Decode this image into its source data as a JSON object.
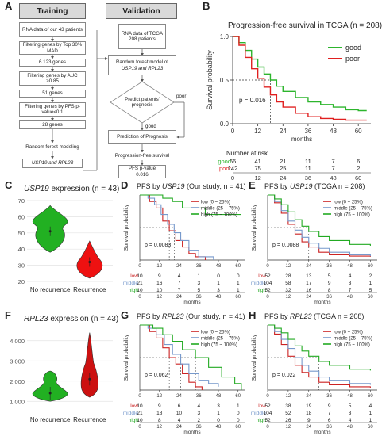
{
  "panels": {
    "A": "A",
    "B": "B",
    "C": "C",
    "D": "D",
    "E": "E",
    "F": "F",
    "G": "G",
    "H": "H"
  },
  "flow": {
    "training_header": "Training",
    "validation_header": "Validation",
    "t1": "RNA data of our 43 patients",
    "t2": "Filtering genes by Top 30% MAD",
    "t3": "6 123 genes",
    "t4": "Filtering genes by AUC >0.85",
    "t5": "51 genes",
    "t6": "Filtering genes by PFS p-value<0.1",
    "t7": "28 genes",
    "t8": "Random forest modeling",
    "t9": "USP19 and RPL23",
    "v1": "RNA data of TCGA 208 patients",
    "v2a": "Random forest model of",
    "v2b": "USP19 and RPL23",
    "v3": "Predict patients' prognosis",
    "v_poor": "poor",
    "v_good": "good",
    "v4": "Prediction of Prognosis",
    "v5": "Progression-free survival",
    "v6a": "PFS p-value",
    "v6b": "0.016"
  },
  "panelB": {
    "title": "Progression-free survival in TCGA (n = 208)",
    "ylabel": "Survival probability",
    "xlabel": "months",
    "pvalue": "p = 0.016",
    "risk_title": "Number at risk",
    "legend": [
      {
        "name": "good",
        "color": "#2db52d"
      },
      {
        "name": "poor",
        "color": "#e02020"
      }
    ],
    "chart_data": {
      "type": "line",
      "title": "Progression-free survival in TCGA (n = 208)",
      "xlabel": "months",
      "ylabel": "Survival probability",
      "xlim": [
        0,
        66
      ],
      "ylim": [
        0,
        1.0
      ],
      "x_ticks": [
        0,
        12,
        24,
        36,
        48,
        60
      ],
      "y_ticks": [
        0.0,
        0.5,
        1.0
      ],
      "series": [
        {
          "name": "good",
          "color": "#2db52d",
          "x": [
            0,
            3,
            6,
            9,
            12,
            15,
            18,
            21,
            24,
            30,
            36,
            42,
            48,
            54,
            60,
            64
          ],
          "y": [
            1.0,
            0.93,
            0.84,
            0.74,
            0.65,
            0.57,
            0.5,
            0.43,
            0.37,
            0.3,
            0.25,
            0.22,
            0.19,
            0.16,
            0.15,
            0.15
          ]
        },
        {
          "name": "poor",
          "color": "#e02020",
          "x": [
            0,
            3,
            6,
            9,
            12,
            15,
            18,
            21,
            24,
            30,
            36,
            42,
            48,
            54,
            60,
            64
          ],
          "y": [
            1.0,
            0.9,
            0.76,
            0.63,
            0.52,
            0.42,
            0.33,
            0.25,
            0.19,
            0.12,
            0.08,
            0.06,
            0.05,
            0.04,
            0.04,
            0.04
          ]
        }
      ],
      "risk_table": {
        "x": [
          0,
          12,
          24,
          36,
          48,
          60
        ],
        "rows": [
          {
            "name": "good",
            "values": [
              66,
              41,
              21,
              11,
              7,
              6
            ]
          },
          {
            "name": "poor",
            "values": [
              142,
              75,
              25,
              11,
              7,
              2
            ]
          }
        ]
      }
    }
  },
  "panelC": {
    "title_gene": "USP19",
    "title_rest": " expression (n = 43)",
    "chart_data": {
      "type": "violin",
      "categories": [
        "No recurrence",
        "Recurrence"
      ],
      "ylim": [
        20,
        70
      ],
      "y_ticks": [
        20,
        30,
        40,
        50,
        60,
        70
      ],
      "medians": [
        51,
        32
      ],
      "colors": [
        "#22b022",
        "#ee1111"
      ]
    }
  },
  "panelF": {
    "title_gene": "RPL23",
    "title_rest": " expression (n = 43)",
    "chart_data": {
      "type": "violin",
      "categories": [
        "No recurrence",
        "Recurrence"
      ],
      "ylim": [
        500,
        4500
      ],
      "y_ticks": [
        1000,
        2000,
        3000,
        4000
      ],
      "y_tick_labels": [
        "1 000",
        "2 000",
        "3 000",
        "4 000"
      ],
      "medians": [
        1400,
        2100
      ],
      "colors": [
        "#22b022",
        "#cc1111"
      ]
    }
  },
  "km_small": {
    "ylabel": "Survival probability",
    "xlabel": "months",
    "legend": [
      {
        "name": "low (0 ~ 25%)",
        "color": "#cc2222"
      },
      {
        "name": "middle (25 ~ 75%)",
        "color": "#7799cc"
      },
      {
        "name": "high (75 ~ 100%)",
        "color": "#22aa22"
      }
    ],
    "D": {
      "title_pre": "PFS by ",
      "title_gene": "USP19",
      "title_post": " (Our study, n = 41)",
      "pvalue": "p = 0.0083",
      "chart_data": {
        "type": "line",
        "xlim": [
          0,
          64
        ],
        "x_ticks": [
          0,
          12,
          24,
          36,
          48,
          60
        ],
        "series": [
          {
            "name": "low (0 ~ 25%)",
            "color": "#cc2222",
            "x": [
              0,
              6,
              10,
              14,
              18,
              22,
              26,
              30,
              34,
              40
            ],
            "y": [
              1.0,
              0.9,
              0.8,
              0.6,
              0.45,
              0.3,
              0.2,
              0.1,
              0.05,
              0.0
            ]
          },
          {
            "name": "middle (25 ~ 75%)",
            "color": "#7799cc",
            "x": [
              0,
              5,
              9,
              13,
              17,
              21,
              25,
              30,
              36,
              45
            ],
            "y": [
              1.0,
              0.95,
              0.85,
              0.7,
              0.55,
              0.42,
              0.3,
              0.15,
              0.05,
              0.0
            ]
          },
          {
            "name": "high (75 ~ 100%)",
            "color": "#22aa22",
            "x": [
              0,
              8,
              14,
              20,
              26,
              32,
              40,
              48,
              56,
              62
            ],
            "y": [
              1.0,
              1.0,
              0.95,
              0.9,
              0.8,
              0.8,
              0.7,
              0.7,
              0.7,
              0.7
            ]
          }
        ],
        "risk_table": {
          "x": [
            0,
            12,
            24,
            36,
            48,
            60
          ],
          "rows": [
            {
              "name": "low",
              "values": [
                10,
                9,
                4,
                1,
                0,
                0
              ]
            },
            {
              "name": "middle",
              "values": [
                21,
                16,
                7,
                3,
                1,
                1
              ]
            },
            {
              "name": "high",
              "values": [
                10,
                10,
                7,
                5,
                3,
                1
              ]
            }
          ]
        }
      }
    },
    "E": {
      "title_pre": "PFS by ",
      "title_gene": "USP19",
      "title_post": " (TCGA n = 208)",
      "pvalue": "p = 0.0088",
      "chart_data": {
        "type": "line",
        "xlim": [
          0,
          64
        ],
        "x_ticks": [
          0,
          12,
          24,
          36,
          48,
          60
        ],
        "series": [
          {
            "name": "low (0 ~ 25%)",
            "color": "#cc2222",
            "x": [
              0,
              4,
              8,
              12,
              16,
              20,
              24,
              30,
              36,
              48,
              60
            ],
            "y": [
              1.0,
              0.88,
              0.72,
              0.55,
              0.4,
              0.28,
              0.2,
              0.12,
              0.08,
              0.06,
              0.05
            ]
          },
          {
            "name": "middle (25 ~ 75%)",
            "color": "#7799cc",
            "x": [
              0,
              4,
              8,
              12,
              16,
              20,
              24,
              30,
              36,
              48,
              60
            ],
            "y": [
              1.0,
              0.9,
              0.76,
              0.6,
              0.46,
              0.35,
              0.26,
              0.18,
              0.12,
              0.08,
              0.06
            ]
          },
          {
            "name": "high (75 ~ 100%)",
            "color": "#22aa22",
            "x": [
              0,
              4,
              8,
              12,
              16,
              20,
              24,
              30,
              36,
              48,
              60
            ],
            "y": [
              1.0,
              0.94,
              0.85,
              0.74,
              0.62,
              0.52,
              0.44,
              0.36,
              0.3,
              0.24,
              0.22
            ]
          }
        ],
        "risk_table": {
          "x": [
            0,
            12,
            24,
            36,
            48,
            60
          ],
          "rows": [
            {
              "name": "low",
              "values": [
                52,
                28,
                13,
                5,
                4,
                2
              ]
            },
            {
              "name": "middle",
              "values": [
                104,
                58,
                17,
                9,
                3,
                1
              ]
            },
            {
              "name": "high",
              "values": [
                52,
                32,
                16,
                8,
                7,
                5
              ]
            }
          ]
        }
      }
    },
    "G": {
      "title_pre": "PFS by ",
      "title_gene": "RPL23",
      "title_post": " (Our study, n = 41)",
      "pvalue": "p = 0.062",
      "chart_data": {
        "type": "line",
        "xlim": [
          0,
          64
        ],
        "x_ticks": [
          0,
          12,
          24,
          36,
          48,
          60
        ],
        "series": [
          {
            "name": "low (0 ~ 25%)",
            "color": "#cc2222",
            "x": [
              0,
              6,
              10,
              14,
              18,
              22,
              26,
              30,
              34,
              38
            ],
            "y": [
              1.0,
              0.9,
              0.8,
              0.65,
              0.5,
              0.4,
              0.25,
              0.12,
              0.05,
              0.0
            ]
          },
          {
            "name": "middle (25 ~ 75%)",
            "color": "#7799cc",
            "x": [
              0,
              5,
              10,
              15,
              20,
              25,
              30,
              36,
              42,
              48
            ],
            "y": [
              1.0,
              0.95,
              0.85,
              0.7,
              0.55,
              0.4,
              0.25,
              0.15,
              0.1,
              0.05
            ]
          },
          {
            "name": "high (75 ~ 100%)",
            "color": "#22aa22",
            "x": [
              0,
              8,
              14,
              20,
              26,
              34,
              42,
              50,
              58,
              62
            ],
            "y": [
              1.0,
              0.95,
              0.85,
              0.75,
              0.62,
              0.5,
              0.35,
              0.2,
              0.1,
              0.0
            ]
          }
        ],
        "risk_table": {
          "x": [
            0,
            12,
            24,
            36,
            48,
            60
          ],
          "rows": [
            {
              "name": "low",
              "values": [
                10,
                9,
                6,
                4,
                3,
                1
              ]
            },
            {
              "name": "middle",
              "values": [
                21,
                18,
                10,
                3,
                1,
                0
              ]
            },
            {
              "name": "high",
              "values": [
                10,
                8,
                4,
                2,
                0,
                0
              ]
            }
          ]
        }
      }
    },
    "H": {
      "title_pre": "PFS by ",
      "title_gene": "RPL23",
      "title_post": " (TCGA n = 208)",
      "pvalue": "p = 0.022",
      "chart_data": {
        "type": "line",
        "xlim": [
          0,
          64
        ],
        "x_ticks": [
          0,
          12,
          24,
          36,
          48,
          60
        ],
        "series": [
          {
            "name": "low (0 ~ 25%)",
            "color": "#cc2222",
            "x": [
              0,
              4,
              8,
              12,
              16,
              20,
              24,
              30,
              36,
              48,
              60
            ],
            "y": [
              1.0,
              0.86,
              0.7,
              0.52,
              0.38,
              0.27,
              0.2,
              0.12,
              0.08,
              0.05,
              0.03
            ]
          },
          {
            "name": "middle (25 ~ 75%)",
            "color": "#7799cc",
            "x": [
              0,
              4,
              8,
              12,
              16,
              20,
              24,
              30,
              36,
              48,
              60
            ],
            "y": [
              1.0,
              0.9,
              0.78,
              0.64,
              0.5,
              0.38,
              0.29,
              0.2,
              0.15,
              0.1,
              0.08
            ]
          },
          {
            "name": "high (75 ~ 100%)",
            "color": "#22aa22",
            "x": [
              0,
              4,
              8,
              12,
              16,
              20,
              24,
              30,
              36,
              48,
              60
            ],
            "y": [
              1.0,
              0.95,
              0.88,
              0.78,
              0.68,
              0.6,
              0.52,
              0.44,
              0.38,
              0.32,
              0.3
            ]
          }
        ],
        "risk_table": {
          "x": [
            0,
            12,
            24,
            36,
            48,
            60
          ],
          "rows": [
            {
              "name": "low",
              "values": [
                52,
                38,
                19,
                9,
                5,
                4
              ]
            },
            {
              "name": "middle",
              "values": [
                104,
                52,
                18,
                7,
                3,
                1
              ]
            },
            {
              "name": "high",
              "values": [
                52,
                26,
                9,
                6,
                4,
                1
              ]
            }
          ]
        }
      }
    }
  }
}
